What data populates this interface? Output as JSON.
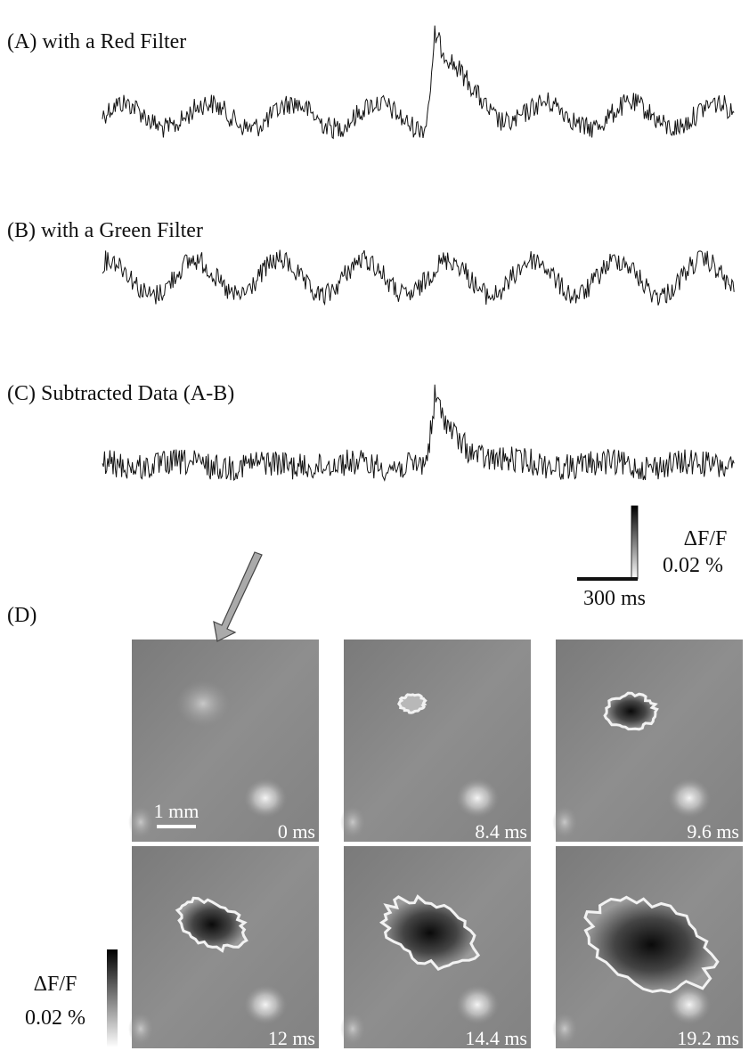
{
  "panels": [
    {
      "label": "(A) with a Red Filter"
    },
    {
      "label": "(B) with a Green Filter"
    },
    {
      "label": "(C) Subtracted Data (A-B)"
    }
  ],
  "trace_scale": {
    "vertical_title": "ΔF/F",
    "vertical_value": "0.02 %",
    "horizontal": "300 ms"
  },
  "imaging": {
    "label": "(D)",
    "scale_bar": "1 mm",
    "frames": [
      "0 ms",
      "8.4 ms",
      "9.6 ms",
      "12 ms",
      "14.4 ms",
      "19.2 ms"
    ],
    "colorbar": {
      "title": "ΔF/F",
      "value": "0.02 %"
    }
  }
}
